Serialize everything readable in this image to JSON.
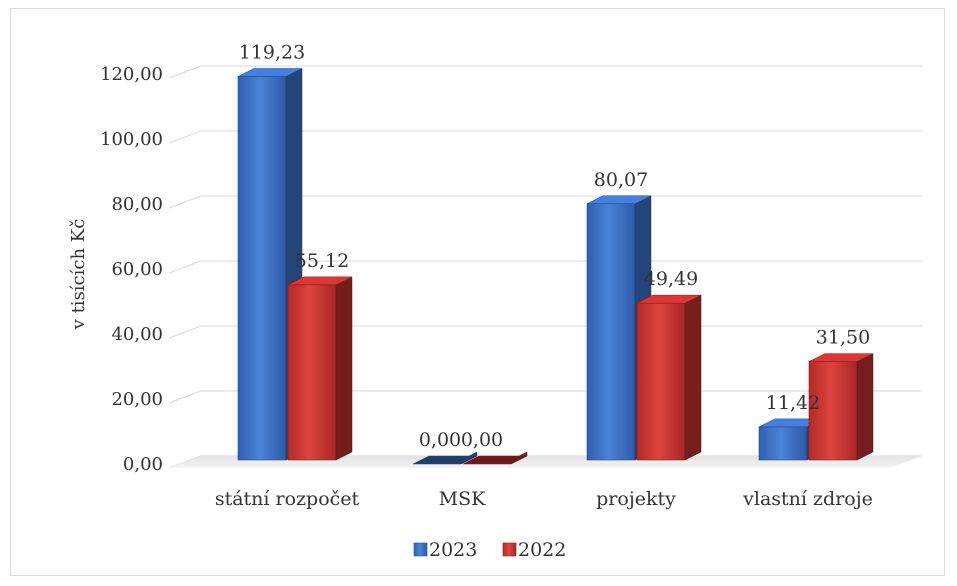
{
  "chart_data": {
    "type": "bar",
    "style": "3d-clustered-column",
    "categories": [
      "státní rozpočet",
      "MSK",
      "projekty",
      "vlastní zdroje"
    ],
    "series": [
      {
        "name": "2023",
        "values": [
          119.23,
          0.0,
          80.07,
          11.42
        ],
        "labels": [
          "119,23",
          "0,00",
          "80,07",
          "11,42"
        ],
        "color": "#3a6fc4"
      },
      {
        "name": "2022",
        "values": [
          55.12,
          0.0,
          49.49,
          31.5
        ],
        "labels": [
          "55,12",
          "0,00",
          "49,49",
          "31,50"
        ],
        "color": "#c0302e"
      }
    ],
    "yticks": [
      "0,00",
      "20,00",
      "40,00",
      "60,00",
      "80,00",
      "100,00",
      "120,00"
    ],
    "ylim": [
      0,
      120
    ],
    "ylabel": "v tisících Kč",
    "xlabel": "",
    "title": "",
    "grid": true,
    "legend_position": "bottom"
  }
}
